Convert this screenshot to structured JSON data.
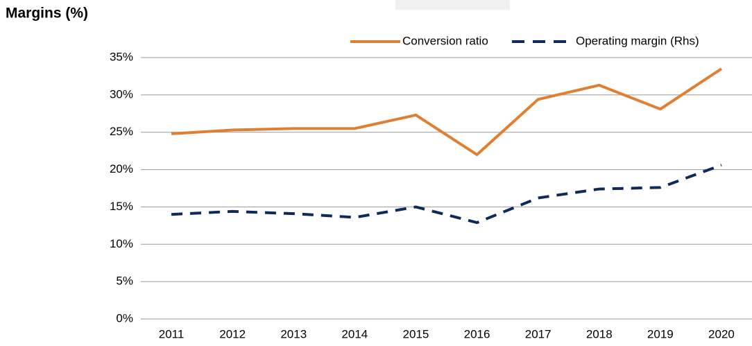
{
  "chart_data": {
    "type": "line",
    "title": "Margins (%)",
    "categories": [
      "2011",
      "2012",
      "2013",
      "2014",
      "2015",
      "2016",
      "2017",
      "2018",
      "2019",
      "2020"
    ],
    "series": [
      {
        "name": "Conversion ratio",
        "color": "#e07f32",
        "dash": false,
        "values": [
          24.8,
          25.3,
          25.5,
          25.5,
          27.3,
          22.0,
          29.4,
          31.3,
          28.1,
          33.5
        ]
      },
      {
        "name": "Operating margin (Rhs)",
        "color": "#0d2a5c",
        "dash": true,
        "values": [
          14.0,
          14.4,
          14.1,
          13.6,
          15.0,
          12.9,
          16.2,
          17.4,
          17.6,
          20.6
        ]
      }
    ],
    "ylim": [
      0,
      35
    ],
    "yticks": [
      {
        "value": 0,
        "label": "0%"
      },
      {
        "value": 5,
        "label": "5%"
      },
      {
        "value": 10,
        "label": "10%"
      },
      {
        "value": 15,
        "label": "15%"
      },
      {
        "value": 20,
        "label": "20%"
      },
      {
        "value": 25,
        "label": "25%"
      },
      {
        "value": 30,
        "label": "30%"
      },
      {
        "value": 35,
        "label": "35%"
      }
    ],
    "grid": true,
    "legend": "top-right"
  }
}
